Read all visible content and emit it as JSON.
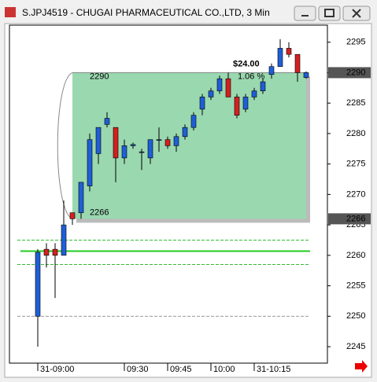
{
  "window": {
    "title": "S.JPJ4519 - CHUGAI PHARMACEUTICAL CO.,LTD, 3 Min"
  },
  "chart_data": {
    "type": "candlestick",
    "categories": [
      "31-09:00",
      null,
      null,
      null,
      null,
      null,
      null,
      null,
      null,
      null,
      "09:30",
      null,
      null,
      null,
      null,
      "09:45",
      null,
      null,
      null,
      null,
      "10:00",
      null,
      null,
      null,
      null,
      "31-10:15",
      null,
      null,
      null,
      null,
      null,
      null
    ],
    "open": [
      2250,
      2261,
      2261,
      2260,
      2267,
      2267,
      2271.4,
      2276.7,
      2281.5,
      2281,
      2276,
      2278,
      2277,
      2276,
      2279,
      2279,
      2278,
      2279.5,
      2281,
      2284,
      2286,
      2287,
      2289,
      2286,
      2284,
      2286,
      2287,
      2289.7,
      2291,
      2294,
      2293,
      2289.2
    ],
    "high": [
      2261,
      2262,
      2262,
      2269,
      2267,
      2272,
      2280,
      2281,
      2283.5,
      2281,
      2279,
      2278.5,
      2277.5,
      2279,
      2281,
      2279.5,
      2280,
      2281.5,
      2283.5,
      2286.5,
      2287.5,
      2289.5,
      2290,
      2286.5,
      2286.5,
      2287.5,
      2289,
      2291.5,
      2295.5,
      2295,
      2293,
      2290.2
    ],
    "low": [
      2245,
      2258,
      2253,
      2260,
      2265,
      2266,
      2270.5,
      2275,
      2281,
      2272,
      2275,
      2277.5,
      2274,
      2275,
      2277,
      2277.5,
      2277,
      2279,
      2280.5,
      2283,
      2285.5,
      2286.5,
      2286,
      2282.5,
      2283.5,
      2285.5,
      2286.5,
      2289,
      2291,
      2292.5,
      2288.5,
      2289
    ],
    "close": [
      2260.5,
      2260,
      2260,
      2265,
      2266,
      2272,
      2279,
      2281,
      2282.5,
      2276,
      2278,
      2278.2,
      2277,
      2279,
      2279,
      2278,
      2279.5,
      2281,
      2283,
      2286,
      2287,
      2289,
      2286,
      2283,
      2286,
      2287,
      2288.5,
      2291,
      2294,
      2293,
      2290,
      2290
    ],
    "up_color": "#1f5fd6",
    "down_color": "#d42020",
    "ylim": [
      2242.3,
      2297.8
    ],
    "yticks": [
      2245,
      2250,
      2255,
      2260,
      2265,
      2270,
      2275,
      2280,
      2285,
      2290,
      2295
    ],
    "price_markers": [
      2290,
      2266
    ],
    "range_box": {
      "high": 2290,
      "low": 2266,
      "change": "$24.00",
      "percent": "1.06 %",
      "color": "#9ad8b0"
    },
    "hlines": [
      {
        "value": 2262.5,
        "color": "#33bb33",
        "style": "dashed"
      },
      {
        "value": 2260.7,
        "color": "#22cc22",
        "style": "solid"
      },
      {
        "value": 2258.5,
        "color": "#33bb33",
        "style": "dashed"
      },
      {
        "value": 2250,
        "color": "#999999",
        "style": "dashed"
      }
    ]
  }
}
